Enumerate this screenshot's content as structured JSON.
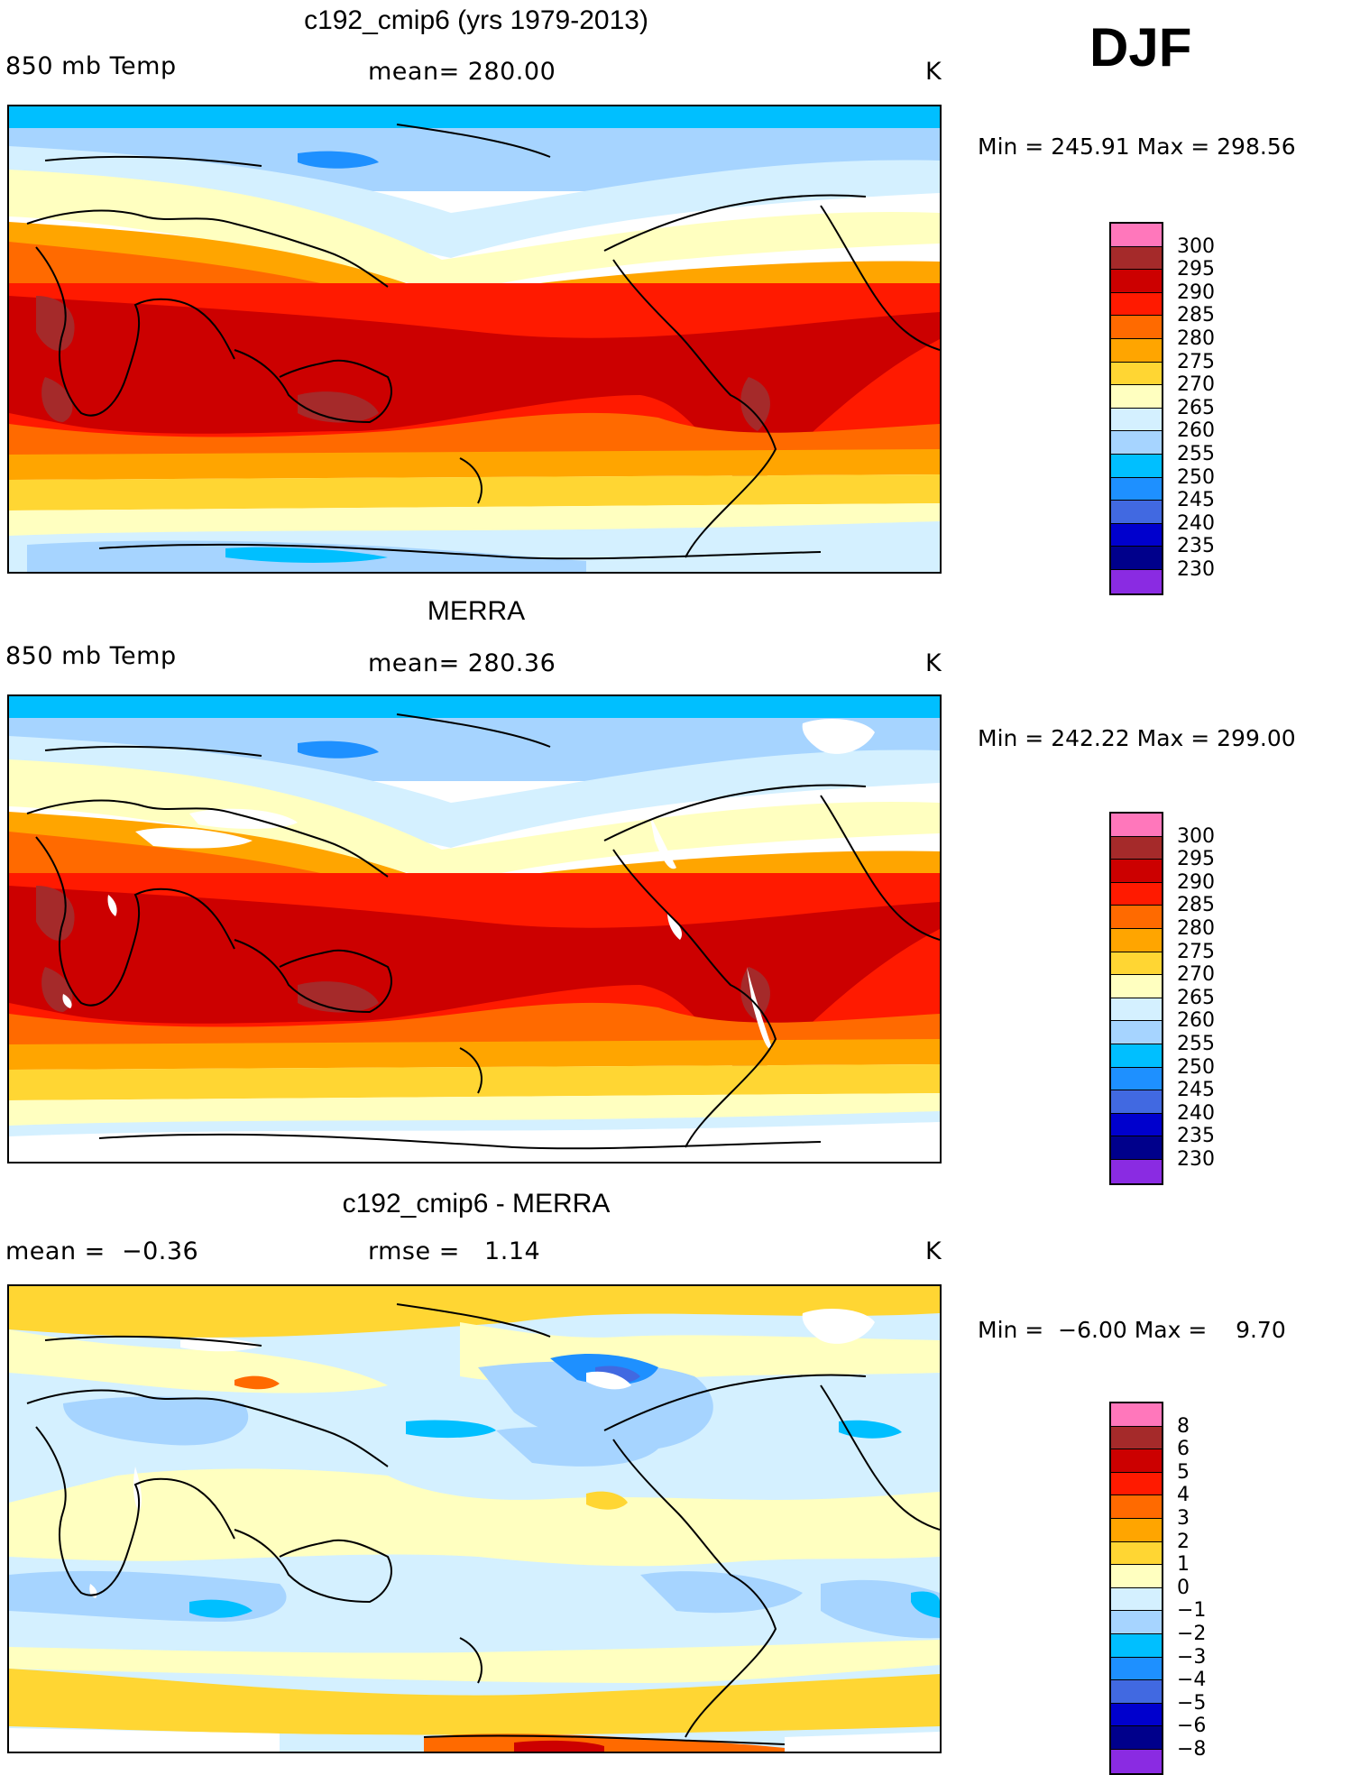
{
  "season": "DJF",
  "panels": [
    {
      "title": "c192_cmip6 (yrs 1979-2013)",
      "left": "850 mb Temp",
      "center": "mean= 280.00",
      "units": "K",
      "minmax": "Min = 245.91 Max = 298.56",
      "colorbar": {
        "colors": [
          "#ff77bb",
          "#a52a2a",
          "#cc0000",
          "#ff1a00",
          "#ff6a00",
          "#ffa500",
          "#ffd633",
          "#ffffc0",
          "#d4f0ff",
          "#a6d4ff",
          "#00bfff",
          "#1e90ff",
          "#4169e1",
          "#0000cd",
          "#00008b",
          "#8a2be2"
        ],
        "ticks": [
          "300",
          "295",
          "290",
          "285",
          "280",
          "275",
          "270",
          "265",
          "260",
          "255",
          "250",
          "245",
          "240",
          "235",
          "230"
        ]
      }
    },
    {
      "title": "MERRA",
      "left": "850 mb Temp",
      "center": "mean= 280.36",
      "units": "K",
      "minmax": "Min = 242.22 Max = 299.00",
      "colorbar": {
        "colors": [
          "#ff77bb",
          "#a52a2a",
          "#cc0000",
          "#ff1a00",
          "#ff6a00",
          "#ffa500",
          "#ffd633",
          "#ffffc0",
          "#d4f0ff",
          "#a6d4ff",
          "#00bfff",
          "#1e90ff",
          "#4169e1",
          "#0000cd",
          "#00008b",
          "#8a2be2"
        ],
        "ticks": [
          "300",
          "295",
          "290",
          "285",
          "280",
          "275",
          "270",
          "265",
          "260",
          "255",
          "250",
          "245",
          "240",
          "235",
          "230"
        ]
      }
    },
    {
      "title": "c192_cmip6 - MERRA",
      "left": "mean =  −0.36",
      "center": "rmse =   1.14",
      "units": "K",
      "minmax": "Min =  −6.00 Max =    9.70",
      "colorbar": {
        "colors": [
          "#ff77bb",
          "#a52a2a",
          "#cc0000",
          "#ff1a00",
          "#ff6a00",
          "#ffa500",
          "#ffd633",
          "#ffffc0",
          "#d4f0ff",
          "#a6d4ff",
          "#00bfff",
          "#1e90ff",
          "#4169e1",
          "#0000cd",
          "#00008b",
          "#8a2be2"
        ],
        "ticks": [
          "8",
          "6",
          "5",
          "4",
          "3",
          "2",
          "1",
          "0",
          "−1",
          "−2",
          "−3",
          "−4",
          "−5",
          "−6",
          "−8"
        ]
      }
    }
  ]
}
